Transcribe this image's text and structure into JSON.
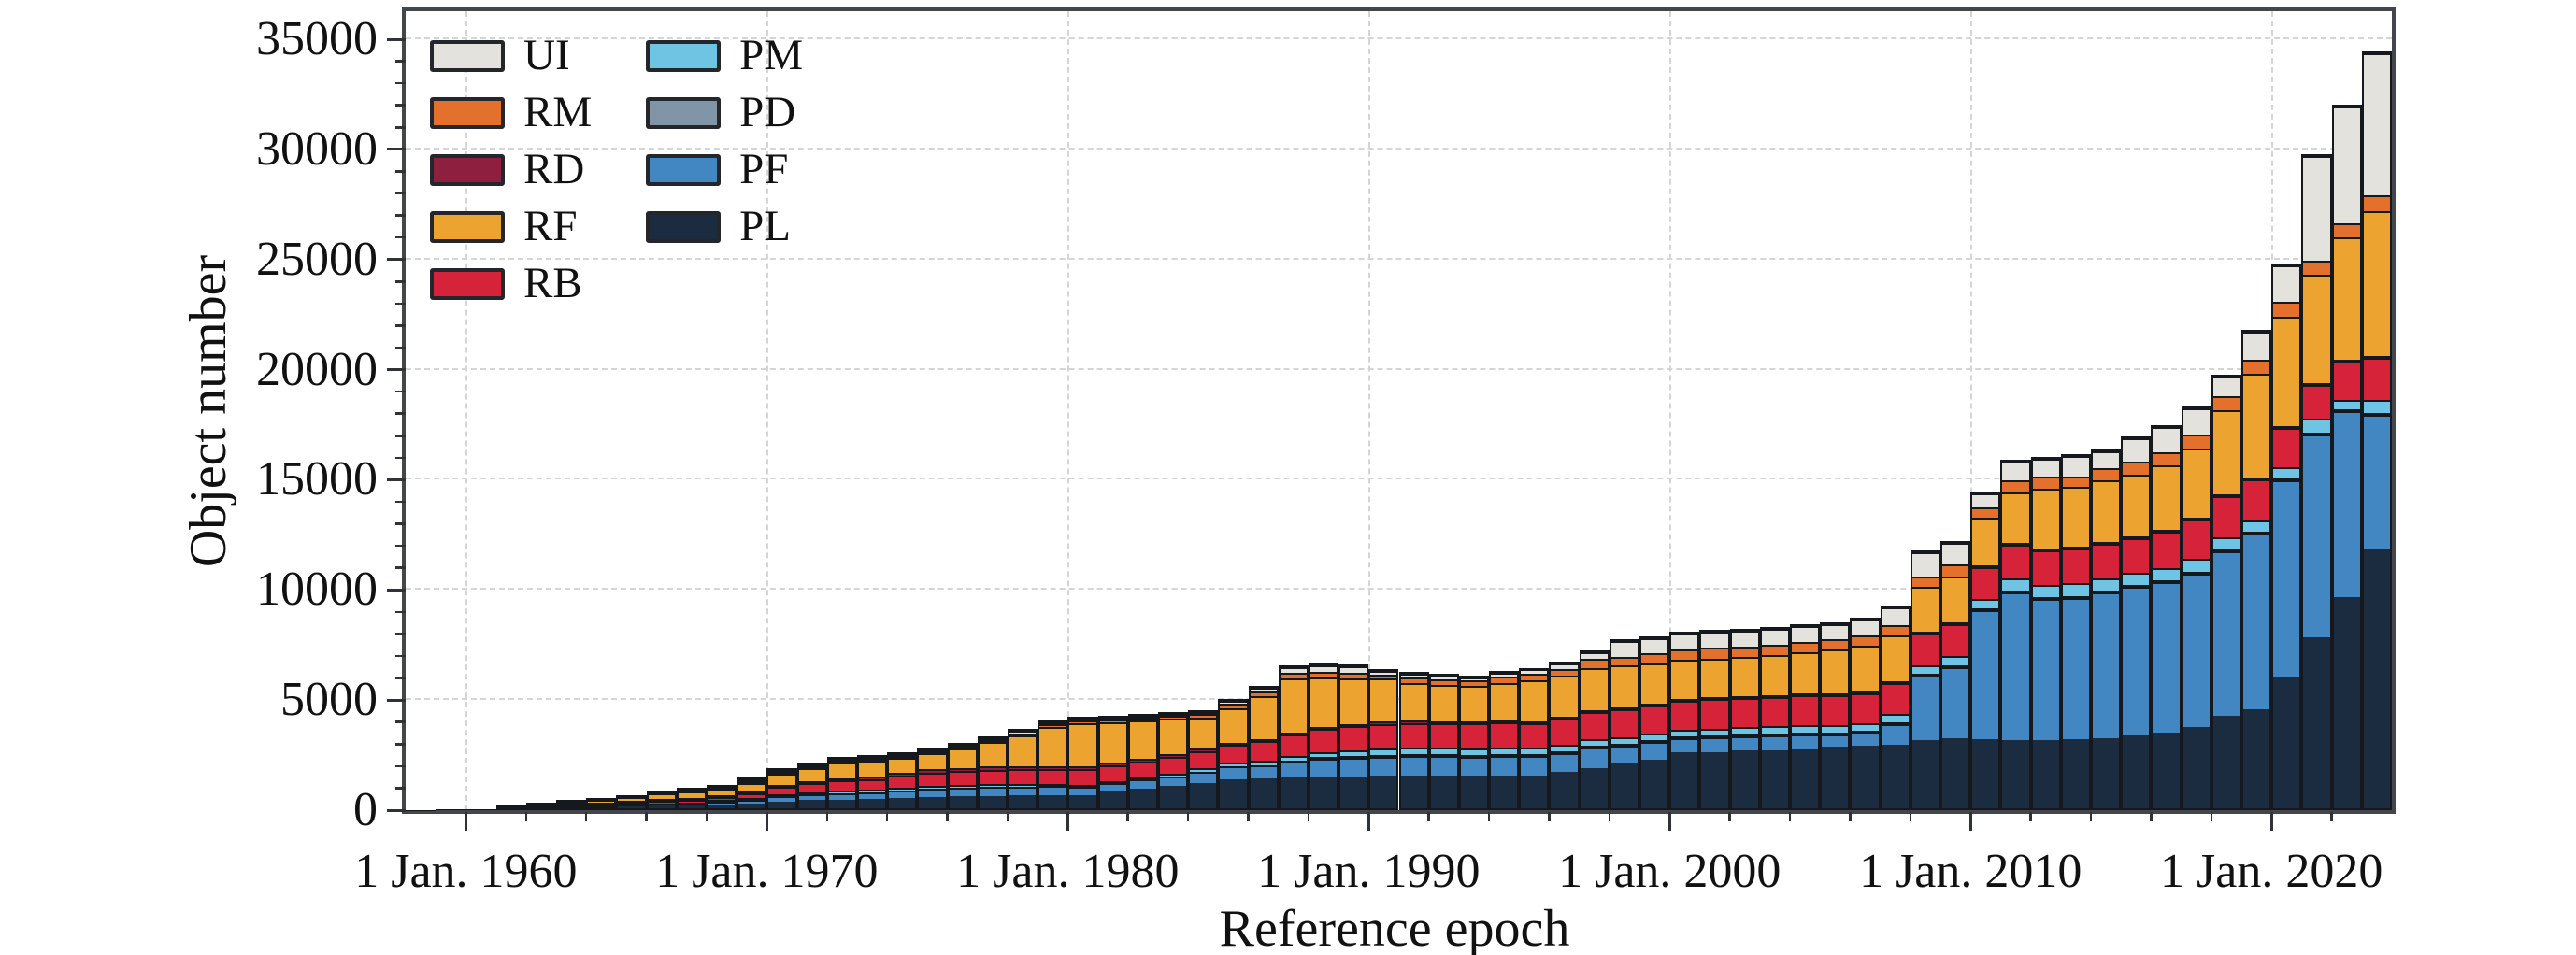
{
  "chart_data": {
    "type": "bar",
    "stacked": true,
    "xlabel": "Reference epoch",
    "ylabel": "Object number",
    "ylim": [
      0,
      35000
    ],
    "grid": "dashed",
    "legend_position": "upper-left",
    "y_major_ticks": [
      0,
      5000,
      10000,
      15000,
      20000,
      25000,
      30000,
      35000
    ],
    "y_minor_step": 1000,
    "x_tick_years": [
      1960,
      1970,
      1980,
      1990,
      2000,
      2010,
      2020
    ],
    "x_tick_labels": [
      "1 Jan. 1960",
      "1 Jan. 1970",
      "1 Jan. 1980",
      "1 Jan. 1990",
      "1 Jan. 2000",
      "1 Jan. 2010",
      "1 Jan. 2020"
    ],
    "x_minor_step_years": 2,
    "years": [
      1958,
      1959,
      1960,
      1961,
      1962,
      1963,
      1964,
      1965,
      1966,
      1967,
      1968,
      1969,
      1970,
      1971,
      1972,
      1973,
      1974,
      1975,
      1976,
      1977,
      1978,
      1979,
      1980,
      1981,
      1982,
      1983,
      1984,
      1985,
      1986,
      1987,
      1988,
      1989,
      1990,
      1991,
      1992,
      1993,
      1994,
      1995,
      1996,
      1997,
      1998,
      1999,
      2000,
      2001,
      2002,
      2003,
      2004,
      2005,
      2006,
      2007,
      2008,
      2009,
      2010,
      2011,
      2012,
      2013,
      2014,
      2015,
      2016,
      2017,
      2018,
      2019,
      2020,
      2021,
      2022,
      2023
    ],
    "legend_columns": [
      [
        "UI",
        "RM",
        "RD",
        "RF",
        "RB"
      ],
      [
        "PM",
        "PD",
        "PF",
        "PL"
      ]
    ],
    "series": [
      {
        "code": "PL",
        "color": "#1b2c41",
        "values": [
          4,
          8,
          18,
          35,
          55,
          75,
          100,
          135,
          165,
          200,
          240,
          320,
          380,
          420,
          450,
          470,
          510,
          550,
          570,
          590,
          610,
          630,
          650,
          790,
          930,
          1070,
          1210,
          1355,
          1380,
          1420,
          1460,
          1500,
          1525,
          1560,
          1560,
          1550,
          1560,
          1560,
          1700,
          1900,
          2100,
          2300,
          2615,
          2650,
          2700,
          2730,
          2780,
          2880,
          2930,
          2950,
          3150,
          3250,
          3200,
          3150,
          3150,
          3200,
          3250,
          3360,
          3500,
          3740,
          4240,
          4550,
          6060,
          7840,
          9660,
          11900
        ]
      },
      {
        "code": "PF",
        "color": "#4287c2",
        "values": [
          0,
          3,
          2,
          20,
          25,
          60,
          80,
          100,
          120,
          140,
          165,
          215,
          250,
          300,
          330,
          350,
          390,
          430,
          430,
          440,
          430,
          420,
          400,
          415,
          430,
          450,
          520,
          595,
          640,
          780,
          850,
          880,
          915,
          920,
          900,
          880,
          900,
          900,
          900,
          950,
          850,
          800,
          675,
          680,
          680,
          690,
          700,
          570,
          600,
          1000,
          3000,
          3300,
          5950,
          6800,
          6500,
          6520,
          6700,
          6860,
          6900,
          7080,
          7600,
          8050,
          9000,
          9290,
          8530,
          6080
        ]
      },
      {
        "code": "PD",
        "color": "#8095a8",
        "values": [
          0,
          0,
          1,
          1,
          2,
          3,
          4,
          4,
          5,
          6,
          6,
          8,
          10,
          10,
          10,
          10,
          10,
          10,
          10,
          10,
          10,
          12,
          15,
          15,
          15,
          15,
          20,
          25,
          25,
          25,
          30,
          30,
          30,
          30,
          30,
          30,
          30,
          30,
          30,
          30,
          30,
          30,
          30,
          30,
          30,
          30,
          30,
          30,
          30,
          30,
          30,
          30,
          30,
          30,
          30,
          30,
          30,
          30,
          30,
          30,
          30,
          30,
          30,
          30,
          30,
          30
        ]
      },
      {
        "code": "PM",
        "color": "#6fc4e4",
        "values": [
          0,
          0,
          2,
          4,
          6,
          10,
          12,
          15,
          20,
          25,
          30,
          45,
          60,
          80,
          90,
          100,
          110,
          130,
          130,
          130,
          120,
          100,
          70,
          85,
          95,
          110,
          150,
          185,
          200,
          230,
          260,
          280,
          295,
          300,
          300,
          300,
          300,
          300,
          300,
          300,
          310,
          310,
          310,
          320,
          330,
          330,
          340,
          350,
          360,
          370,
          420,
          420,
          430,
          580,
          580,
          570,
          570,
          560,
          570,
          560,
          540,
          520,
          500,
          640,
          420,
          630
        ]
      },
      {
        "code": "RB",
        "color": "#d62339",
        "values": [
          3,
          6,
          12,
          25,
          40,
          55,
          70,
          90,
          115,
          140,
          170,
          250,
          420,
          480,
          520,
          550,
          600,
          650,
          670,
          690,
          700,
          710,
          720,
          740,
          760,
          790,
          820,
          850,
          900,
          1000,
          1080,
          1120,
          1155,
          1160,
          1170,
          1180,
          1190,
          1180,
          1220,
          1280,
          1300,
          1330,
          1370,
          1370,
          1380,
          1390,
          1400,
          1410,
          1420,
          1430,
          1440,
          1480,
          1480,
          1550,
          1570,
          1590,
          1600,
          1600,
          1700,
          1820,
          1870,
          1910,
          1800,
          1530,
          1740,
          1910
        ]
      },
      {
        "code": "RD",
        "color": "#8f1f3f",
        "values": [
          2,
          5,
          8,
          15,
          22,
          30,
          35,
          40,
          50,
          60,
          70,
          90,
          100,
          110,
          120,
          130,
          135,
          140,
          140,
          140,
          140,
          140,
          140,
          140,
          140,
          140,
          90,
          90,
          90,
          95,
          100,
          100,
          105,
          100,
          100,
          90,
          90,
          80,
          80,
          70,
          70,
          60,
          60,
          60,
          60,
          60,
          60,
          60,
          60,
          60,
          60,
          60,
          60,
          60,
          60,
          60,
          60,
          60,
          60,
          60,
          60,
          60,
          60,
          60,
          60,
          60
        ]
      },
      {
        "code": "RF",
        "color": "#eca32f",
        "values": [
          0,
          3,
          4,
          100,
          160,
          190,
          230,
          280,
          330,
          375,
          420,
          510,
          580,
          650,
          780,
          790,
          760,
          790,
          950,
          1180,
          1470,
          1870,
          2060,
          1910,
          1790,
          1700,
          1480,
          1600,
          2000,
          2500,
          2300,
          2150,
          2015,
          1770,
          1710,
          1680,
          1760,
          1900,
          1930,
          2000,
          1950,
          1900,
          1805,
          1830,
          1840,
          1850,
          1900,
          2060,
          2100,
          2130,
          2100,
          2120,
          2200,
          2300,
          2780,
          2790,
          2820,
          2830,
          2960,
          3200,
          3880,
          4760,
          5000,
          4970,
          5620,
          6630
        ]
      },
      {
        "code": "RM",
        "color": "#e4702e",
        "values": [
          1,
          2,
          2,
          5,
          10,
          12,
          14,
          16,
          20,
          24,
          28,
          32,
          50,
          50,
          55,
          55,
          60,
          70,
          80,
          85,
          100,
          110,
          120,
          125,
          130,
          135,
          180,
          215,
          230,
          250,
          280,
          270,
          210,
          270,
          270,
          260,
          300,
          330,
          340,
          400,
          430,
          450,
          495,
          500,
          490,
          490,
          490,
          490,
          490,
          490,
          490,
          560,
          460,
          560,
          570,
          470,
          580,
          580,
          600,
          640,
          640,
          640,
          700,
          640,
          630,
          720
        ]
      },
      {
        "code": "UI",
        "color": "#e3e2dd",
        "values": [
          0,
          1,
          2,
          5,
          10,
          15,
          15,
          20,
          25,
          30,
          31,
          30,
          50,
          60,
          55,
          55,
          55,
          70,
          80,
          85,
          100,
          78,
          55,
          60,
          60,
          60,
          90,
          140,
          195,
          280,
          320,
          280,
          150,
          150,
          150,
          150,
          200,
          190,
          250,
          320,
          720,
          720,
          750,
          740,
          740,
          750,
          760,
          680,
          750,
          850,
          1090,
          980,
          660,
          860,
          780,
          920,
          750,
          1080,
          1150,
          1180,
          900,
          1300,
          1650,
          4790,
          5340,
          6480
        ]
      }
    ]
  }
}
